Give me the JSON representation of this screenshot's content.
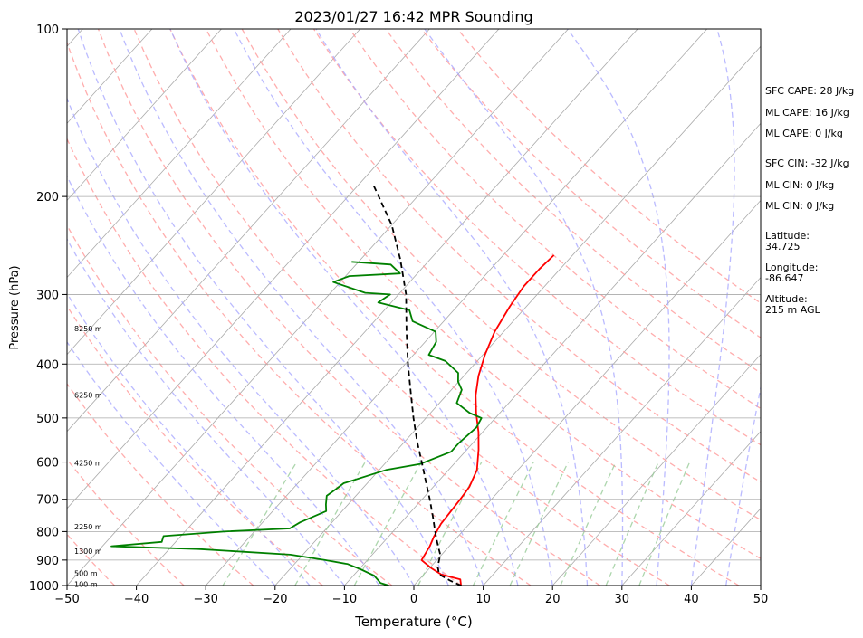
{
  "chart_data": {
    "type": "line",
    "title": "2023/01/27 16:42 MPR Sounding",
    "xlabel": "Temperature (°C)",
    "ylabel": "Pressure (hPa)",
    "xlim": [
      -50,
      50
    ],
    "ylim": [
      1000,
      100
    ],
    "y_scale": "log",
    "grid": true,
    "skewed_isotherms": true,
    "x_ticks": [
      "−50",
      "−40",
      "−30",
      "−20",
      "−10",
      "0",
      "10",
      "20",
      "30",
      "40",
      "50"
    ],
    "y_ticks": [
      "100",
      "200",
      "300",
      "400",
      "500",
      "600",
      "700",
      "800",
      "900",
      "1000"
    ],
    "series": [
      {
        "role": "temperature",
        "color": "#ff0000",
        "x": [
          6.8,
          5.9,
          2.5,
          0.2,
          -2.2,
          -2.8,
          -3.5,
          -4.1,
          -4.5,
          -4.8,
          -5.9,
          -8.3,
          -10.6,
          -13.4,
          -15.8,
          -17.9,
          -19.7,
          -21.3,
          -22.4,
          -23.0,
          -23.0,
          -22.7
        ],
        "y": [
          1000,
          975,
          955,
          930,
          900,
          850,
          815,
          775,
          700,
          665,
          620,
          570,
          530,
          490,
          455,
          420,
          385,
          350,
          315,
          290,
          270,
          255
        ]
      },
      {
        "role": "dewpoint",
        "color": "#008000",
        "x": [
          -3.6,
          -5.1,
          -7.0,
          -9.8,
          -12.3,
          -16.1,
          -21.8,
          -35.8,
          -48.7,
          -42.0,
          -42.5,
          -34.4,
          -25.3,
          -24.6,
          -22.3,
          -23.2,
          -24.2,
          -23.7,
          -23.4,
          -19.0,
          -14.9,
          -12.0,
          -12.0,
          -11.5,
          -12.0,
          -14.3,
          -17.5,
          -18.5,
          -20.1,
          -21.2,
          -24.6,
          -27.8,
          -28.4,
          -29.8,
          -34.5,
          -36.4,
          -41.9,
          -41.2,
          -45.0,
          -51.0,
          -49.5,
          -42.5,
          -45.0,
          -51.0
        ],
        "y": [
          1000,
          990,
          960,
          935,
          915,
          900,
          880,
          860,
          850,
          835,
          815,
          800,
          790,
          770,
          735,
          715,
          690,
          670,
          655,
          620,
          605,
          575,
          555,
          520,
          500,
          490,
          470,
          445,
          430,
          415,
          395,
          385,
          365,
          350,
          335,
          320,
          310,
          300,
          298,
          285,
          278,
          275,
          265,
          262
        ]
      },
      {
        "role": "parcel",
        "color": "#000000",
        "style": "dashed",
        "x": [
          6.8,
          4.6,
          2.2,
          1.0,
          -0.2,
          -1.6,
          -3.0,
          -4.4,
          -6.3,
          -8.9,
          -11.8,
          -14.9,
          -18.3,
          -21.8,
          -25.5,
          -29.6,
          -34.0,
          -38.9,
          -44.2,
          -50.0,
          -58.0
        ],
        "y": [
          1000,
          980,
          955,
          925,
          880,
          850,
          820,
          790,
          750,
          700,
          650,
          600,
          550,
          500,
          450,
          400,
          350,
          300,
          260,
          225,
          190
        ]
      }
    ],
    "height_labels": [
      {
        "text": "8250 m",
        "p": 345
      },
      {
        "text": "6250 m",
        "p": 455
      },
      {
        "text": "4250 m",
        "p": 602
      },
      {
        "text": "2250 m",
        "p": 784
      },
      {
        "text": "1300 m",
        "p": 868
      },
      {
        "text": "500 m",
        "p": 950
      },
      {
        "text": "100 m",
        "p": 995
      }
    ],
    "background_lines": {
      "isotherm_color": "#aaaaaa",
      "dry_adiabat_color": "#ff9999",
      "moist_adiabat_color": "#aaaaff",
      "mixing_ratio_color": "#99cc99",
      "wet_bulb_color": "#cc99cc"
    }
  },
  "info": {
    "sfc_cape": "SFC CAPE: 28 J/kg",
    "ml_cape": "ML CAPE: 16 J/kg",
    "ml_cape2": "ML CAPE: 0 J/kg",
    "sfc_cin": "SFC CIN: -32 J/kg",
    "ml_cin": "ML CIN: 0 J/kg",
    "ml_cin2": "ML CIN: 0 J/kg",
    "latitude_label": "Latitude:",
    "latitude_value": "34.725",
    "longitude_label": "Longitude:",
    "longitude_value": "-86.647",
    "altitude_label": "Altitude:",
    "altitude_value": "215 m AGL"
  }
}
